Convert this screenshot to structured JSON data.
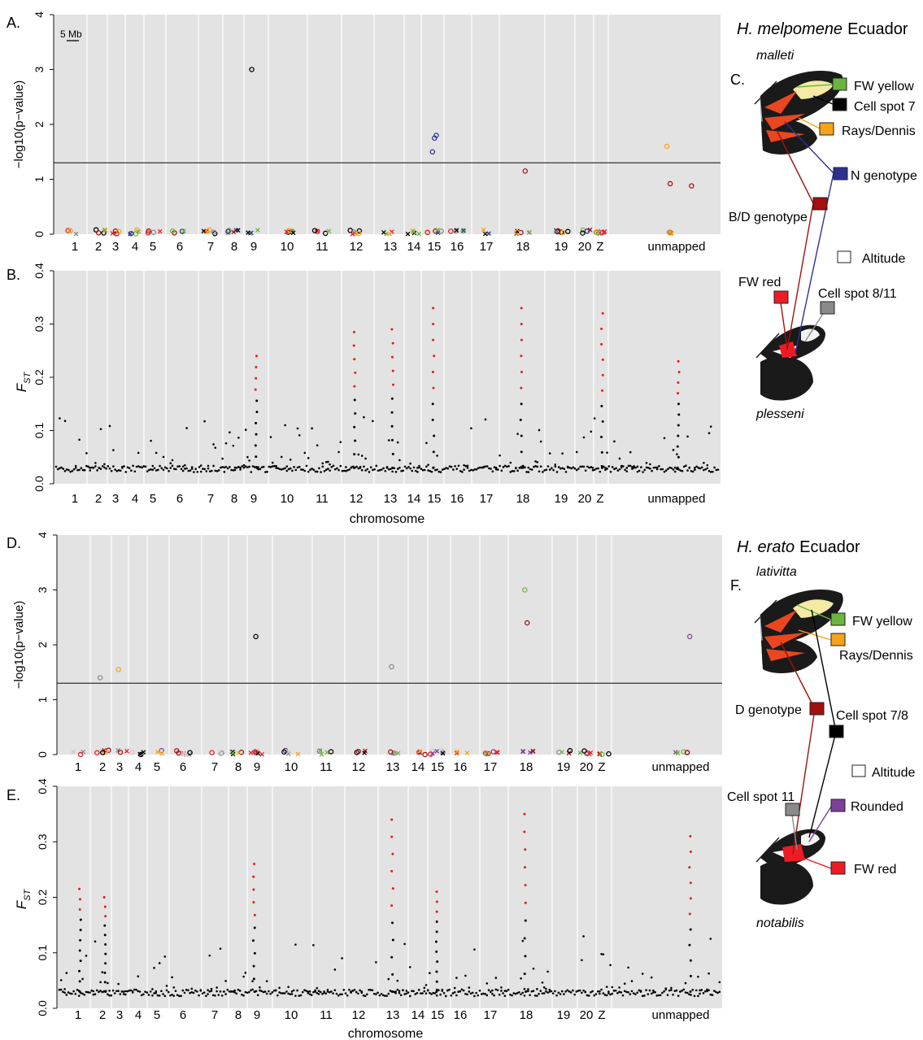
{
  "panels": {
    "A": {
      "label": "A.",
      "ylabel": "−log10(p−value)",
      "yticks": [
        "0",
        "1",
        "2",
        "3",
        "4"
      ],
      "ylim": [
        0,
        4
      ],
      "threshold": 1.3,
      "scalebar": "5 Mb"
    },
    "B": {
      "label": "B.",
      "ylabel_main": "F",
      "ylabel_sub": "ST",
      "yticks": [
        "0.0",
        "0.1",
        "0.2",
        "0.3",
        "0.4"
      ],
      "ylim": [
        0,
        0.4
      ],
      "xlabel": "chromosome"
    },
    "D": {
      "label": "D.",
      "ylabel": "−log10(p−value)",
      "yticks": [
        "0",
        "1",
        "2",
        "3",
        "4"
      ],
      "ylim": [
        0,
        4
      ],
      "threshold": 1.3
    },
    "E": {
      "label": "E.",
      "ylabel_main": "F",
      "ylabel_sub": "ST",
      "yticks": [
        "0.0",
        "0.1",
        "0.2",
        "0.3",
        "0.4"
      ],
      "ylim": [
        0,
        0.4
      ],
      "xlabel": "chromosome"
    }
  },
  "chromosomes_melpomene": [
    "1",
    "2",
    "3",
    "4",
    "5",
    "6",
    "7",
    "8",
    "9",
    "10",
    "11",
    "12",
    "13",
    "14",
    "15",
    "16",
    "17",
    "18",
    "19",
    "20",
    "Z",
    "unmapped"
  ],
  "chromosomes_erato": [
    "1",
    "2",
    "3",
    "4",
    "5",
    "6",
    "7",
    "8",
    "9",
    "10",
    "11",
    "12",
    "13",
    "14",
    "15",
    "16",
    "17",
    "18",
    "19",
    "20",
    "Z",
    "unmapped"
  ],
  "melpomene": {
    "species": "H. melpomene",
    "region": "Ecuador",
    "panel": "C.",
    "top_morph": "malleti",
    "bottom_morph": "plesseni",
    "legend": [
      {
        "label": "FW yellow",
        "color": "#6db33f"
      },
      {
        "label": "Cell spot 7",
        "color": "#000000"
      },
      {
        "label": "Rays/Dennis",
        "color": "#f6a21a"
      },
      {
        "label": "N genotype",
        "color": "#2e3192"
      },
      {
        "label": "B/D genotype",
        "color": "#a1110f"
      },
      {
        "label": "Altitude",
        "color": "#ffffff"
      },
      {
        "label": "FW red",
        "color": "#ed1c24"
      },
      {
        "label": "Cell spot 8/11",
        "color": "#8a8a8a"
      }
    ]
  },
  "erato": {
    "species": "H. erato",
    "region": "Ecuador",
    "panel": "F.",
    "top_morph": "lativitta",
    "bottom_morph": "notabilis",
    "legend": [
      {
        "label": "FW yellow",
        "color": "#6db33f"
      },
      {
        "label": "Rays/Dennis",
        "color": "#f6a21a"
      },
      {
        "label": "D genotype",
        "color": "#a1110f"
      },
      {
        "label": "Cell spot 7/8",
        "color": "#000000"
      },
      {
        "label": "Altitude",
        "color": "#ffffff"
      },
      {
        "label": "Cell spot 11",
        "color": "#8a8a8a"
      },
      {
        "label": "Rounded",
        "color": "#7e3f98"
      },
      {
        "label": "FW red",
        "color": "#ed1c24"
      }
    ]
  },
  "chart_data": [
    {
      "type": "scatter",
      "panel": "A",
      "ylabel": "−log10(p−value)",
      "ylim": [
        0,
        4
      ],
      "threshold": 1.3,
      "peaks": [
        {
          "chromosome": "9",
          "value": 3.0,
          "trait": "Cell spot 7"
        },
        {
          "chromosome": "15",
          "value": 1.8,
          "trait": "N genotype"
        },
        {
          "chromosome": "15",
          "value": 1.75,
          "trait": "N genotype"
        },
        {
          "chromosome": "15",
          "value": 1.5,
          "trait": "N genotype"
        },
        {
          "chromosome": "unmapped",
          "value": 1.6,
          "trait": "Rays/Dennis"
        },
        {
          "chromosome": "18",
          "value": 1.15,
          "trait": "B/D genotype"
        },
        {
          "chromosome": "unmapped",
          "value": 0.92,
          "trait": "B/D genotype"
        },
        {
          "chromosome": "unmapped",
          "value": 0.88,
          "trait": "B/D genotype"
        }
      ]
    },
    {
      "type": "scatter",
      "panel": "B",
      "ylabel": "FST",
      "ylim": [
        0,
        0.4
      ],
      "peaks": [
        {
          "chromosome": "15",
          "value": 0.33
        },
        {
          "chromosome": "18",
          "value": 0.33
        },
        {
          "chromosome": "13",
          "value": 0.29
        },
        {
          "chromosome": "12",
          "value": 0.285
        },
        {
          "chromosome": "Z",
          "value": 0.32
        },
        {
          "chromosome": "9",
          "value": 0.24
        },
        {
          "chromosome": "unmapped",
          "value": 0.23
        }
      ]
    },
    {
      "type": "scatter",
      "panel": "D",
      "ylabel": "−log10(p−value)",
      "ylim": [
        0,
        4
      ],
      "threshold": 1.3,
      "peaks": [
        {
          "chromosome": "18",
          "value": 3.0,
          "trait": "FW yellow"
        },
        {
          "chromosome": "18",
          "value": 2.4,
          "trait": "D genotype"
        },
        {
          "chromosome": "9",
          "value": 2.15,
          "trait": "Cell spot 7/8"
        },
        {
          "chromosome": "unmapped",
          "value": 2.15,
          "trait": "Rounded"
        },
        {
          "chromosome": "13",
          "value": 1.6,
          "trait": "Cell spot 11"
        },
        {
          "chromosome": "3",
          "value": 1.55,
          "trait": "Rays/Dennis"
        },
        {
          "chromosome": "2",
          "value": 1.4,
          "trait": "Cell spot 11"
        }
      ]
    },
    {
      "type": "scatter",
      "panel": "E",
      "ylabel": "FST",
      "ylim": [
        0,
        0.4
      ],
      "peaks": [
        {
          "chromosome": "18",
          "value": 0.35
        },
        {
          "chromosome": "13",
          "value": 0.34
        },
        {
          "chromosome": "unmapped",
          "value": 0.31
        },
        {
          "chromosome": "9",
          "value": 0.26
        },
        {
          "chromosome": "1",
          "value": 0.215
        },
        {
          "chromosome": "15",
          "value": 0.21
        },
        {
          "chromosome": "2",
          "value": 0.2
        }
      ]
    }
  ]
}
